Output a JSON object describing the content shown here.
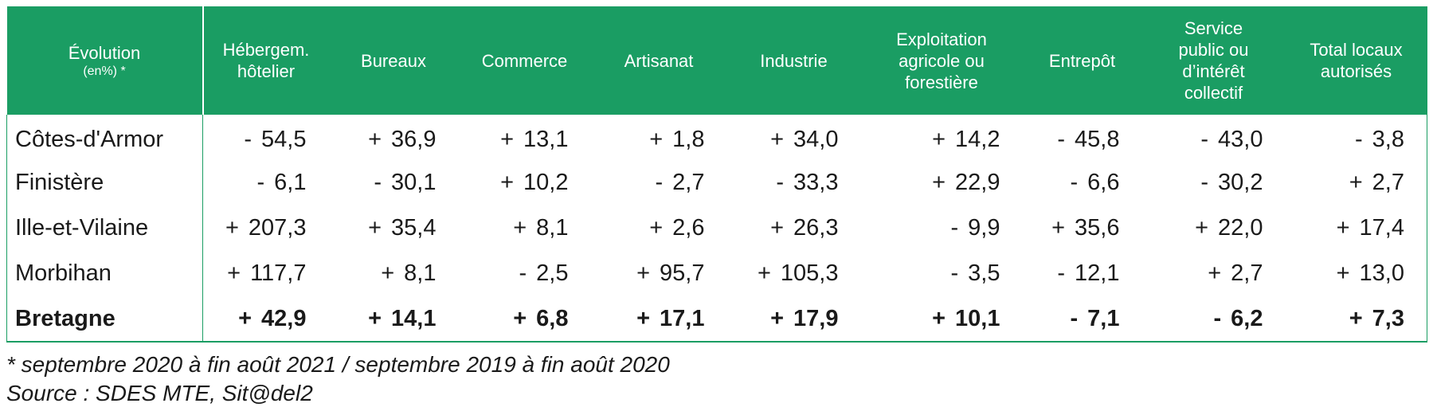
{
  "table": {
    "header": {
      "first": {
        "main": "Évolution",
        "sub": "(en%) *"
      },
      "columns": [
        [
          "Hébergem.",
          "hôtelier"
        ],
        [
          "Bureaux"
        ],
        [
          "Commerce"
        ],
        [
          "Artisanat"
        ],
        [
          "Industrie"
        ],
        [
          "Exploitation",
          "agricole ou",
          "forestière"
        ],
        [
          "Entrepôt"
        ],
        [
          "Service",
          "public ou",
          "d’intérêt",
          "collectif"
        ],
        [
          "Total locaux",
          "autorisés"
        ]
      ]
    },
    "rows": [
      {
        "label": "Côtes-d'Armor",
        "cells": [
          [
            "-",
            "54,5"
          ],
          [
            "+",
            "36,9"
          ],
          [
            "+",
            "13,1"
          ],
          [
            "+",
            "1,8"
          ],
          [
            "+",
            "34,0"
          ],
          [
            "+",
            "14,2"
          ],
          [
            "-",
            "45,8"
          ],
          [
            "-",
            "43,0"
          ],
          [
            "-",
            "3,8"
          ]
        ]
      },
      {
        "label": "Finistère",
        "cells": [
          [
            "-",
            "6,1"
          ],
          [
            "-",
            "30,1"
          ],
          [
            "+",
            "10,2"
          ],
          [
            "-",
            "2,7"
          ],
          [
            "-",
            "33,3"
          ],
          [
            "+",
            "22,9"
          ],
          [
            "-",
            "6,6"
          ],
          [
            "-",
            "30,2"
          ],
          [
            "+",
            "2,7"
          ]
        ]
      },
      {
        "label": "Ille-et-Vilaine",
        "cells": [
          [
            "+",
            "207,3"
          ],
          [
            "+",
            "35,4"
          ],
          [
            "+",
            "8,1"
          ],
          [
            "+",
            "2,6"
          ],
          [
            "+",
            "26,3"
          ],
          [
            "-",
            "9,9"
          ],
          [
            "+",
            "35,6"
          ],
          [
            "+",
            "22,0"
          ],
          [
            "+",
            "17,4"
          ]
        ]
      },
      {
        "label": "Morbihan",
        "cells": [
          [
            "+",
            "117,7"
          ],
          [
            "+",
            "8,1"
          ],
          [
            "-",
            "2,5"
          ],
          [
            "+",
            "95,7"
          ],
          [
            "+",
            "105,3"
          ],
          [
            "-",
            "3,5"
          ],
          [
            "-",
            "12,1"
          ],
          [
            "+",
            "2,7"
          ],
          [
            "+",
            "13,0"
          ]
        ]
      },
      {
        "label": "Bretagne",
        "total": true,
        "cells": [
          [
            "+",
            "42,9"
          ],
          [
            "+",
            "14,1"
          ],
          [
            "+",
            "6,8"
          ],
          [
            "+",
            "17,1"
          ],
          [
            "+",
            "17,9"
          ],
          [
            "+",
            "10,1"
          ],
          [
            "-",
            "7,1"
          ],
          [
            "-",
            "6,2"
          ],
          [
            "+",
            "7,3"
          ]
        ]
      }
    ]
  },
  "footnote": {
    "line1": "* septembre 2020 à fin août 2021 / septembre 2019 à fin août 2020",
    "line2": "Source : SDES MTE, Sit@del2"
  },
  "colors": {
    "header_bg": "#1a9d63",
    "header_text": "#ffffff",
    "border": "#1a9d63"
  }
}
